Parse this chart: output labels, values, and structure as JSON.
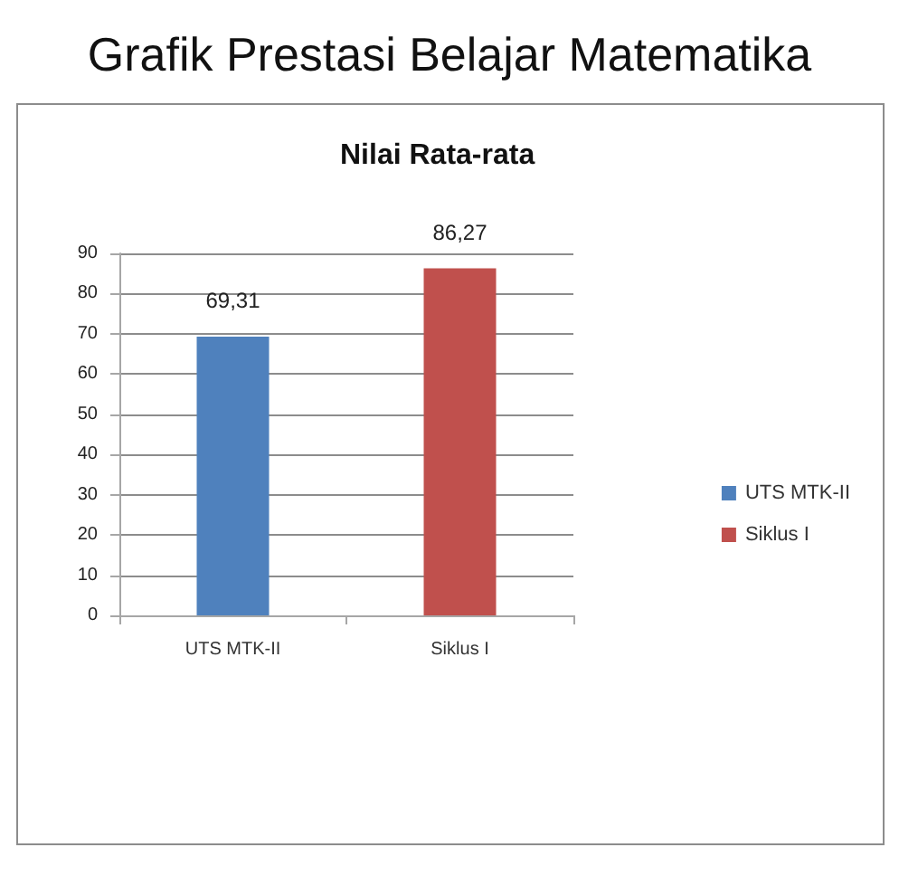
{
  "chart_data": {
    "type": "bar",
    "title": "Grafik Prestasi Belajar Matematika",
    "subtitle": "Nilai Rata-rata",
    "categories": [
      "UTS MTK-II",
      "Siklus I"
    ],
    "series": [
      {
        "name": "UTS MTK-II",
        "color": "#4f81bd",
        "values": [
          69.31,
          null
        ],
        "value_labels": [
          "69,31",
          null
        ]
      },
      {
        "name": "Siklus I",
        "color": "#c0504d",
        "values": [
          null,
          86.27
        ],
        "value_labels": [
          null,
          "86,27"
        ]
      }
    ],
    "ylim": [
      0,
      90
    ],
    "yticks": [
      0,
      10,
      20,
      30,
      40,
      50,
      60,
      70,
      80,
      90
    ],
    "grid": "y",
    "legend": "right"
  }
}
